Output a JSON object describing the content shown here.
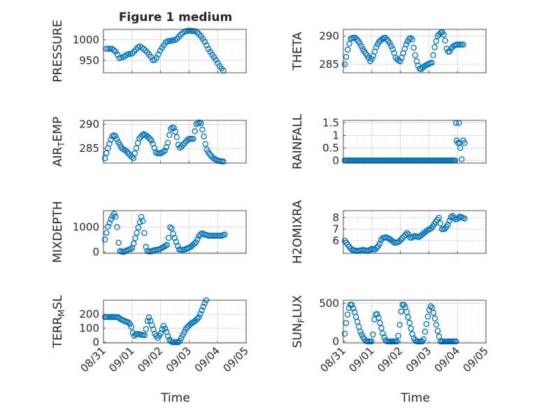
{
  "figure": {
    "title": "Figure 1 medium",
    "x_axis_label": "Time",
    "x_tick_labels": [
      "08/31",
      "09/01",
      "09/02",
      "09/03",
      "09/04",
      "09/05"
    ],
    "marker_color": "#0072BD",
    "grid_color": "#dcdcdc",
    "axis_color": "#262626"
  },
  "chart_data": [
    {
      "type": "scatter",
      "ylabel": "PRESSURE",
      "x_range_days": [
        0,
        5
      ],
      "ylim": [
        920,
        1025
      ],
      "yticks": [
        950,
        1000
      ],
      "grid": true,
      "keypoints": [
        [
          0.1,
          978
        ],
        [
          0.3,
          978
        ],
        [
          0.45,
          970
        ],
        [
          0.55,
          955
        ],
        [
          0.7,
          958
        ],
        [
          0.85,
          965
        ],
        [
          1.0,
          966
        ],
        [
          1.15,
          977
        ],
        [
          1.25,
          985
        ],
        [
          1.4,
          978
        ],
        [
          1.5,
          972
        ],
        [
          1.65,
          960
        ],
        [
          1.75,
          948
        ],
        [
          1.85,
          955
        ],
        [
          2.0,
          975
        ],
        [
          2.2,
          995
        ],
        [
          2.4,
          998
        ],
        [
          2.55,
          1000
        ],
        [
          2.7,
          1012
        ],
        [
          2.85,
          1020
        ],
        [
          3.0,
          1022
        ],
        [
          3.25,
          1020
        ],
        [
          3.4,
          1010
        ],
        [
          3.55,
          995
        ],
        [
          3.7,
          975
        ],
        [
          3.85,
          960
        ],
        [
          3.95,
          950
        ],
        [
          4.05,
          938
        ],
        [
          4.2,
          925
        ]
      ],
      "n_points": 64
    },
    {
      "type": "scatter",
      "ylabel": "THETA",
      "x_range_days": [
        0,
        5
      ],
      "ylim": [
        283.5,
        291.2
      ],
      "yticks": [
        285,
        290
      ],
      "grid": true,
      "keypoints": [
        [
          0.05,
          285
        ],
        [
          0.15,
          287.5
        ],
        [
          0.25,
          289.5
        ],
        [
          0.4,
          289.8
        ],
        [
          0.55,
          289
        ],
        [
          0.7,
          287.5
        ],
        [
          0.85,
          286.5
        ],
        [
          0.95,
          285.5
        ],
        [
          1.05,
          286.5
        ],
        [
          1.15,
          288
        ],
        [
          1.25,
          289
        ],
        [
          1.45,
          289.8
        ],
        [
          1.6,
          289
        ],
        [
          1.75,
          287.5
        ],
        [
          1.85,
          286
        ],
        [
          2.0,
          285.5
        ],
        [
          2.1,
          287
        ],
        [
          2.2,
          288.5
        ],
        [
          2.3,
          289.5
        ],
        [
          2.4,
          289.8
        ],
        [
          2.5,
          287
        ],
        [
          2.6,
          285
        ],
        [
          2.7,
          284
        ],
        [
          2.8,
          284.5
        ],
        [
          2.95,
          285
        ],
        [
          3.1,
          285.3
        ],
        [
          3.2,
          288
        ],
        [
          3.3,
          290
        ],
        [
          3.45,
          290.8
        ],
        [
          3.55,
          290
        ],
        [
          3.6,
          288
        ],
        [
          3.7,
          287
        ],
        [
          3.8,
          288
        ],
        [
          3.95,
          288.5
        ],
        [
          4.2,
          288.5
        ]
      ],
      "n_points": 80
    },
    {
      "type": "scatter",
      "ylabel": "AIR_TEMP",
      "x_range_days": [
        0,
        5
      ],
      "ylim": [
        282,
        290.8
      ],
      "yticks": [
        285,
        290
      ],
      "grid": true,
      "keypoints": [
        [
          0.05,
          283
        ],
        [
          0.15,
          285
        ],
        [
          0.3,
          287.5
        ],
        [
          0.4,
          287.8
        ],
        [
          0.5,
          286.5
        ],
        [
          0.65,
          285
        ],
        [
          0.8,
          284.5
        ],
        [
          0.95,
          283.5
        ],
        [
          1.05,
          283
        ],
        [
          1.15,
          285
        ],
        [
          1.25,
          287
        ],
        [
          1.4,
          288
        ],
        [
          1.55,
          287.5
        ],
        [
          1.7,
          286.5
        ],
        [
          1.85,
          284
        ],
        [
          2.0,
          284
        ],
        [
          2.15,
          284.5
        ],
        [
          2.25,
          286
        ],
        [
          2.35,
          289
        ],
        [
          2.45,
          289.5
        ],
        [
          2.55,
          288
        ],
        [
          2.65,
          285
        ],
        [
          2.75,
          285.5
        ],
        [
          2.9,
          286.5
        ],
        [
          3.0,
          287
        ],
        [
          3.15,
          287
        ],
        [
          3.25,
          290
        ],
        [
          3.4,
          290.5
        ],
        [
          3.5,
          288
        ],
        [
          3.6,
          285
        ],
        [
          3.7,
          284
        ],
        [
          3.85,
          283
        ],
        [
          4.0,
          282.5
        ],
        [
          4.2,
          282.3
        ]
      ],
      "n_points": 80
    },
    {
      "type": "scatter",
      "ylabel": "RAINFALL",
      "x_range_days": [
        0,
        5
      ],
      "ylim": [
        -0.1,
        1.6
      ],
      "yticks": [
        0,
        0.5,
        1,
        1.5
      ],
      "ytick_labels": [
        "0",
        "0.5",
        "1",
        "1.5"
      ],
      "grid": true,
      "points": [
        [
          3.95,
          1.5
        ],
        [
          4.05,
          1.5
        ],
        [
          3.97,
          0.8
        ],
        [
          4.02,
          0.7
        ],
        [
          4.07,
          0.7
        ],
        [
          4.1,
          0.5
        ],
        [
          4.15,
          0.05
        ],
        [
          4.2,
          0.8
        ],
        [
          4.25,
          0.7
        ]
      ],
      "zero_run": [
        0.05,
        3.92
      ],
      "n_zero_points": 95
    },
    {
      "type": "scatter",
      "ylabel": "MIXDEPTH",
      "x_range_days": [
        0,
        5
      ],
      "ylim": [
        -50,
        1650
      ],
      "yticks": [
        0,
        1000
      ],
      "grid": true,
      "keypoints": [
        [
          0.05,
          500
        ],
        [
          0.15,
          1000
        ],
        [
          0.3,
          1400
        ],
        [
          0.4,
          1580
        ],
        [
          0.45,
          1200
        ],
        [
          0.5,
          800
        ],
        [
          0.55,
          50
        ],
        [
          0.7,
          0
        ],
        [
          0.85,
          80
        ],
        [
          1.0,
          150
        ],
        [
          1.05,
          300
        ],
        [
          1.15,
          700
        ],
        [
          1.25,
          1100
        ],
        [
          1.35,
          1500
        ],
        [
          1.45,
          600
        ],
        [
          1.5,
          50
        ],
        [
          1.65,
          20
        ],
        [
          1.8,
          80
        ],
        [
          1.95,
          100
        ],
        [
          2.1,
          200
        ],
        [
          2.25,
          300
        ],
        [
          2.35,
          1100
        ],
        [
          2.45,
          700
        ],
        [
          2.55,
          400
        ],
        [
          2.65,
          100
        ],
        [
          2.8,
          80
        ],
        [
          2.95,
          150
        ],
        [
          3.05,
          200
        ],
        [
          3.15,
          300
        ],
        [
          3.25,
          400
        ],
        [
          3.35,
          650
        ],
        [
          3.45,
          750
        ],
        [
          3.55,
          700
        ],
        [
          3.7,
          650
        ],
        [
          3.85,
          650
        ],
        [
          4.0,
          650
        ],
        [
          4.15,
          650
        ],
        [
          4.25,
          700
        ]
      ],
      "n_points": 80
    },
    {
      "type": "scatter",
      "ylabel": "H2OMIXRA",
      "x_range_days": [
        0,
        5
      ],
      "ylim": [
        4.9,
        8.6
      ],
      "yticks": [
        6,
        7,
        8
      ],
      "grid": true,
      "keypoints": [
        [
          0.05,
          6
        ],
        [
          0.2,
          5.5
        ],
        [
          0.3,
          5.2
        ],
        [
          0.5,
          5.1
        ],
        [
          0.7,
          5.2
        ],
        [
          0.85,
          5.1
        ],
        [
          1.0,
          5.3
        ],
        [
          1.1,
          5.2
        ],
        [
          1.25,
          5.6
        ],
        [
          1.35,
          6.2
        ],
        [
          1.5,
          6.3
        ],
        [
          1.65,
          6.1
        ],
        [
          1.8,
          5.8
        ],
        [
          1.95,
          5.9
        ],
        [
          2.1,
          6.3
        ],
        [
          2.25,
          6.7
        ],
        [
          2.35,
          6.2
        ],
        [
          2.5,
          6.4
        ],
        [
          2.65,
          6.3
        ],
        [
          2.8,
          6.6
        ],
        [
          2.95,
          6.9
        ],
        [
          3.1,
          7.1
        ],
        [
          3.2,
          7.5
        ],
        [
          3.35,
          8
        ],
        [
          3.45,
          7
        ],
        [
          3.55,
          7
        ],
        [
          3.65,
          7.3
        ],
        [
          3.8,
          8.2
        ],
        [
          3.95,
          7.8
        ],
        [
          4.1,
          8.1
        ],
        [
          4.25,
          7.9
        ]
      ],
      "n_points": 80
    },
    {
      "type": "scatter",
      "ylabel": "TERR_MSL",
      "x_range_days": [
        0,
        5
      ],
      "ylim": [
        -5,
        300
      ],
      "yticks": [
        0,
        100,
        200
      ],
      "grid": true,
      "keypoints": [
        [
          0.05,
          180
        ],
        [
          0.3,
          180
        ],
        [
          0.5,
          180
        ],
        [
          0.6,
          165
        ],
        [
          0.75,
          150
        ],
        [
          0.9,
          140
        ],
        [
          1.0,
          100
        ],
        [
          1.05,
          40
        ],
        [
          1.15,
          60
        ],
        [
          1.3,
          55
        ],
        [
          1.45,
          50
        ],
        [
          1.55,
          160
        ],
        [
          1.6,
          180
        ],
        [
          1.7,
          120
        ],
        [
          1.8,
          60
        ],
        [
          1.9,
          30
        ],
        [
          2.0,
          60
        ],
        [
          2.1,
          120
        ],
        [
          2.2,
          80
        ],
        [
          2.3,
          20
        ],
        [
          2.4,
          0
        ],
        [
          2.5,
          0
        ],
        [
          2.65,
          0
        ],
        [
          2.8,
          60
        ],
        [
          2.9,
          100
        ],
        [
          3.05,
          130
        ],
        [
          3.2,
          150
        ],
        [
          3.35,
          180
        ],
        [
          3.45,
          230
        ],
        [
          3.55,
          280
        ],
        [
          3.6,
          300
        ]
      ],
      "n_points": 70
    },
    {
      "type": "scatter",
      "ylabel": "SUN_FLUX",
      "x_range_days": [
        0,
        5
      ],
      "ylim": [
        -20,
        540
      ],
      "yticks": [
        0,
        500
      ],
      "grid": true,
      "keypoints": [
        [
          0.05,
          100
        ],
        [
          0.12,
          300
        ],
        [
          0.22,
          480
        ],
        [
          0.3,
          480
        ],
        [
          0.4,
          380
        ],
        [
          0.5,
          250
        ],
        [
          0.6,
          120
        ],
        [
          0.7,
          50
        ],
        [
          0.8,
          0
        ],
        [
          0.9,
          0
        ],
        [
          1.0,
          0
        ],
        [
          1.05,
          120
        ],
        [
          1.1,
          350
        ],
        [
          1.2,
          360
        ],
        [
          1.3,
          220
        ],
        [
          1.4,
          80
        ],
        [
          1.5,
          0
        ],
        [
          1.65,
          0
        ],
        [
          1.8,
          0
        ],
        [
          1.9,
          0
        ],
        [
          1.97,
          200
        ],
        [
          2.05,
          480
        ],
        [
          2.15,
          480
        ],
        [
          2.25,
          350
        ],
        [
          2.35,
          200
        ],
        [
          2.45,
          50
        ],
        [
          2.55,
          0
        ],
        [
          2.7,
          0
        ],
        [
          2.8,
          0
        ],
        [
          2.9,
          200
        ],
        [
          3.0,
          400
        ],
        [
          3.08,
          480
        ],
        [
          3.18,
          350
        ],
        [
          3.3,
          150
        ],
        [
          3.4,
          0
        ],
        [
          3.55,
          0
        ],
        [
          3.7,
          0
        ],
        [
          3.85,
          0
        ],
        [
          3.95,
          0
        ]
      ],
      "n_points": 80
    }
  ]
}
